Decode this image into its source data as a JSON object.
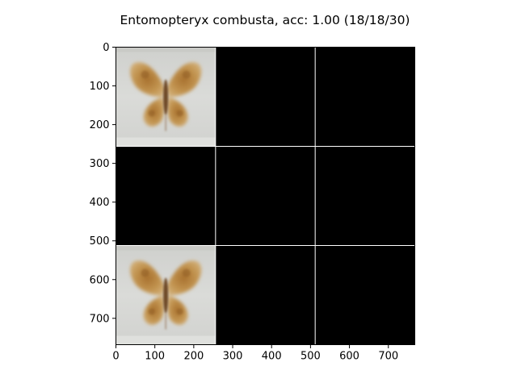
{
  "chart_data": {
    "type": "image-grid",
    "title": "Entomopteryx combusta, acc: 1.00 (18/18/30)",
    "rows": 3,
    "cols": 3,
    "tile_size": 256,
    "xlim": [
      0,
      768
    ],
    "ylim": [
      768,
      0
    ],
    "x_ticks": [
      0,
      100,
      200,
      300,
      400,
      500,
      600,
      700
    ],
    "y_ticks": [
      0,
      100,
      200,
      300,
      400,
      500,
      600,
      700
    ],
    "grid": false,
    "cells": [
      {
        "row": 0,
        "col": 0,
        "content": "moth-image"
      },
      {
        "row": 0,
        "col": 1,
        "content": "black"
      },
      {
        "row": 0,
        "col": 2,
        "content": "black"
      },
      {
        "row": 1,
        "col": 0,
        "content": "black"
      },
      {
        "row": 1,
        "col": 1,
        "content": "black"
      },
      {
        "row": 1,
        "col": 2,
        "content": "black"
      },
      {
        "row": 2,
        "col": 0,
        "content": "moth-image"
      },
      {
        "row": 2,
        "col": 1,
        "content": "black"
      },
      {
        "row": 2,
        "col": 2,
        "content": "black"
      }
    ],
    "colors": {
      "background": "#000000",
      "separator": "#ffffff",
      "image_background": "#d6d7d4",
      "moth_wing": "#c0934a",
      "moth_wing_dark": "#9e6c2c",
      "moth_body": "#7a5530"
    }
  }
}
